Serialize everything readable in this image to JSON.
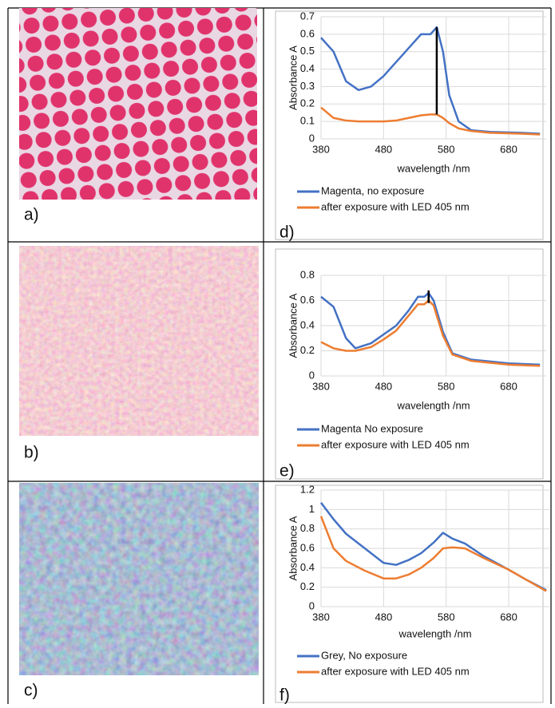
{
  "panels": [
    "a)",
    "b)",
    "c)",
    "d)",
    "e)",
    "f)"
  ],
  "chart_data": [
    {
      "type": "line",
      "xlabel": "wavelength /nm",
      "ylabel": "Absorbance A",
      "x": [
        380,
        400,
        420,
        440,
        460,
        480,
        500,
        520,
        540,
        555,
        565,
        575,
        585,
        600,
        620,
        650,
        700,
        730
      ],
      "series": [
        {
          "name": "Magenta, no exposure",
          "color": "#4472c4",
          "values": [
            0.58,
            0.5,
            0.33,
            0.28,
            0.3,
            0.36,
            0.44,
            0.52,
            0.6,
            0.6,
            0.64,
            0.5,
            0.25,
            0.1,
            0.05,
            0.04,
            0.035,
            0.03
          ]
        },
        {
          "name": "after exposure with LED 405 nm",
          "color": "#ed7d31",
          "values": [
            0.18,
            0.12,
            0.105,
            0.1,
            0.1,
            0.1,
            0.105,
            0.12,
            0.135,
            0.14,
            0.14,
            0.12,
            0.09,
            0.06,
            0.045,
            0.035,
            0.03,
            0.025
          ]
        }
      ],
      "marker_line": {
        "x": 565,
        "y": [
          0.14,
          0.64
        ],
        "color": "#000000"
      },
      "xlim": [
        380,
        740
      ],
      "xticks": [
        380,
        480,
        580,
        680
      ],
      "ylim": [
        0,
        0.7
      ],
      "yticks": [
        0,
        0.1,
        0.2,
        0.3,
        0.4,
        0.5,
        0.6,
        0.7
      ],
      "grid": true,
      "legend": "below"
    },
    {
      "type": "line",
      "xlabel": "wavelength /nm",
      "ylabel": "Absorbance A",
      "x": [
        380,
        400,
        420,
        435,
        460,
        480,
        500,
        520,
        535,
        545,
        552,
        560,
        575,
        590,
        620,
        680,
        730
      ],
      "series": [
        {
          "name": "Magenta No exposure",
          "color": "#4472c4",
          "values": [
            0.63,
            0.55,
            0.3,
            0.22,
            0.26,
            0.33,
            0.4,
            0.52,
            0.63,
            0.63,
            0.66,
            0.6,
            0.35,
            0.18,
            0.13,
            0.1,
            0.09
          ]
        },
        {
          "name": "after exposure with LED 405 nm",
          "color": "#ed7d31",
          "values": [
            0.27,
            0.22,
            0.2,
            0.2,
            0.23,
            0.29,
            0.36,
            0.48,
            0.57,
            0.57,
            0.6,
            0.56,
            0.32,
            0.17,
            0.12,
            0.09,
            0.08
          ]
        }
      ],
      "marker_line": {
        "x": 552,
        "y": [
          0.58,
          0.68
        ],
        "color": "#000000"
      },
      "xlim": [
        380,
        740
      ],
      "xticks": [
        380,
        480,
        580,
        680
      ],
      "ylim": [
        0,
        0.8
      ],
      "yticks": [
        0,
        0.2,
        0.4,
        0.6,
        0.8
      ],
      "grid": true,
      "legend": "below"
    },
    {
      "type": "line",
      "xlabel": "wavelength /nm",
      "ylabel": "Absorbance A",
      "x": [
        380,
        400,
        420,
        450,
        480,
        500,
        520,
        540,
        560,
        575,
        590,
        610,
        640,
        680,
        710,
        740
      ],
      "series": [
        {
          "name": "Grey, No exposure",
          "color": "#4472c4",
          "values": [
            1.07,
            0.9,
            0.75,
            0.6,
            0.45,
            0.43,
            0.48,
            0.55,
            0.66,
            0.76,
            0.7,
            0.65,
            0.52,
            0.38,
            0.27,
            0.17
          ]
        },
        {
          "name": "after exposure with LED 405 nm",
          "color": "#ed7d31",
          "values": [
            0.93,
            0.6,
            0.47,
            0.37,
            0.29,
            0.29,
            0.33,
            0.4,
            0.5,
            0.6,
            0.61,
            0.6,
            0.5,
            0.38,
            0.27,
            0.16
          ]
        }
      ],
      "xlim": [
        380,
        745
      ],
      "xticks": [
        380,
        480,
        580,
        680
      ],
      "ylim": [
        0,
        1.2
      ],
      "yticks": [
        0,
        0.2,
        0.4,
        0.6,
        0.8,
        1,
        1.2
      ],
      "grid": true,
      "legend": "below"
    }
  ]
}
